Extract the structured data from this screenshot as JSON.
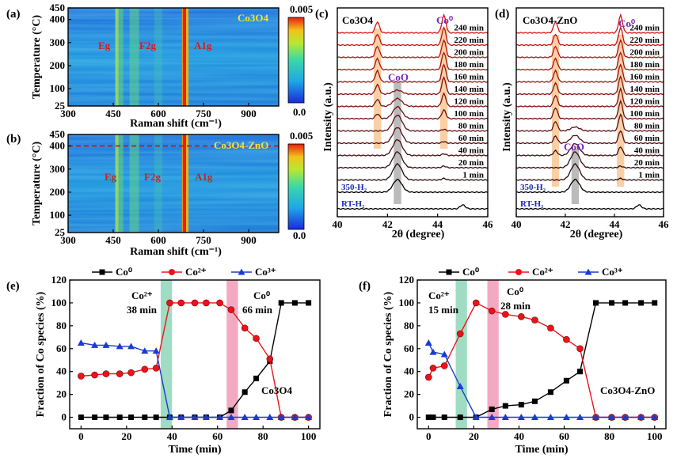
{
  "panels": {
    "a": {
      "label": "(a)",
      "material": "Co3O4",
      "xlabel": "Raman shift (cm⁻¹)",
      "ylabel": "Temperature (°C)",
      "xticks": [
        300,
        450,
        600,
        750,
        900
      ],
      "yticks": [
        25,
        100,
        200,
        300,
        400,
        450
      ],
      "xlim": [
        300,
        1000
      ],
      "ylim": [
        25,
        450
      ],
      "colorbar": {
        "max_label": "0.005",
        "min_label": "0.0"
      },
      "peaks": [
        {
          "name": "Eg",
          "shift": 470
        },
        {
          "name": "F2g",
          "shift": 520
        },
        {
          "name": "A1g",
          "shift": 690
        }
      ]
    },
    "b": {
      "label": "(b)",
      "material": "Co3O4-ZnO",
      "xlabel": "Raman shift (cm⁻¹)",
      "ylabel": "Temperature (°C)",
      "xticks": [
        300,
        450,
        600,
        750,
        900
      ],
      "yticks": [
        25,
        100,
        200,
        300,
        400,
        450
      ],
      "xlim": [
        300,
        1000
      ],
      "ylim": [
        25,
        450
      ],
      "dashed_line_temperature": 400,
      "colorbar": {
        "max_label": "0.005",
        "min_label": "0.0"
      },
      "peaks": [
        {
          "name": "Eg",
          "shift": 470
        },
        {
          "name": "F2g",
          "shift": 520
        },
        {
          "name": "A1g",
          "shift": 690
        }
      ]
    },
    "c": {
      "label": "(c)",
      "material": "Co3O4",
      "xlabel": "2θ (degree)",
      "ylabel": "Intensity (a.u.)",
      "xticks": [
        40,
        42,
        44,
        46
      ],
      "xlim": [
        40,
        46
      ],
      "phase_labels": {
        "co": "Co⁰",
        "coo": "CoO"
      },
      "curve_labels": [
        "RT-H₂",
        "350-H₂",
        "1 min",
        "20 min",
        "40 min",
        "60 min",
        "80 min",
        "100 min",
        "120 min",
        "140 min",
        "160 min",
        "180 min",
        "200 min",
        "220 min",
        "240 min"
      ]
    },
    "d": {
      "label": "(d)",
      "material": "Co3O4-ZnO",
      "xlabel": "2θ (degree)",
      "ylabel": "Intensity (a.u.)",
      "xticks": [
        40,
        42,
        44,
        46
      ],
      "xlim": [
        40,
        46
      ],
      "phase_labels": {
        "co": "Co⁰",
        "coo": "CoO"
      },
      "curve_labels": [
        "RT-H₂",
        "350-H₂",
        "1 min",
        "20 min",
        "40 min",
        "60 min",
        "80 min",
        "100 min",
        "120 min",
        "140 min",
        "160 min",
        "180 min",
        "200 min",
        "220 min",
        "240 min"
      ]
    },
    "e": {
      "label": "(e)",
      "material": "Co3O4",
      "annotation_co2": "Co²⁺",
      "annotation_co2_time": "38 min",
      "annotation_co0": "Co⁰",
      "annotation_co0_time": "66 min"
    },
    "f": {
      "label": "(f)",
      "material": "Co3O4-ZnO",
      "annotation_co2": "Co²⁺",
      "annotation_co2_time": "15 min",
      "annotation_co0": "Co⁰",
      "annotation_co0_time": "28 min"
    }
  },
  "colors": {
    "co0": "#000000",
    "co2": "#e8141a",
    "co3": "#1a3ccc",
    "green_band": "#8fd6b8",
    "pink_band": "#f29ab8",
    "orange_band": "#f8c896",
    "gray_band": "#b4b4b4",
    "dashed_line": "#b01818"
  },
  "chart_data": [
    {
      "id": "e",
      "type": "line",
      "title": "",
      "xlabel": "Time (min)",
      "ylabel": "Fraction of Co species (%)",
      "xlim": [
        -5,
        105
      ],
      "ylim": [
        -10,
        120
      ],
      "xticks": [
        0,
        20,
        40,
        60,
        80,
        100
      ],
      "yticks": [
        0,
        20,
        40,
        60,
        80,
        100,
        120
      ],
      "bands": [
        {
          "x0": 35,
          "x1": 40,
          "color": "green"
        },
        {
          "x0": 64,
          "x1": 69,
          "color": "pink"
        }
      ],
      "series": [
        {
          "name": "Co⁰",
          "marker": "square",
          "x": [
            0,
            6,
            11,
            17,
            22,
            28,
            33,
            39,
            44,
            50,
            55,
            61,
            66,
            72,
            77,
            83,
            88,
            94,
            100
          ],
          "values": [
            0,
            0,
            0,
            0,
            0,
            0,
            0,
            0,
            0,
            0,
            0,
            0,
            6,
            22,
            34,
            49,
            100,
            100,
            100
          ]
        },
        {
          "name": "Co²⁺",
          "marker": "circle",
          "x": [
            0,
            6,
            11,
            17,
            22,
            28,
            33,
            39,
            44,
            50,
            55,
            61,
            66,
            72,
            77,
            83,
            88,
            94,
            100
          ],
          "values": [
            36,
            37,
            38,
            38,
            39,
            42,
            43,
            100,
            100,
            100,
            100,
            100,
            94,
            78,
            69,
            51,
            0,
            0,
            0
          ]
        },
        {
          "name": "Co³⁺",
          "marker": "triangle",
          "x": [
            0,
            6,
            11,
            17,
            22,
            28,
            33,
            39,
            44,
            50,
            55,
            61,
            66,
            72,
            77,
            83,
            88,
            94,
            100
          ],
          "values": [
            65,
            63,
            63,
            62,
            62,
            58,
            58,
            0,
            0,
            0,
            0,
            0,
            0,
            0,
            0,
            0,
            0,
            0,
            0
          ]
        }
      ]
    },
    {
      "id": "f",
      "type": "line",
      "title": "",
      "xlabel": "Time (min)",
      "ylabel": "Fraction of Co species (%)",
      "xlim": [
        -5,
        105
      ],
      "ylim": [
        -10,
        120
      ],
      "xticks": [
        0,
        20,
        40,
        60,
        80,
        100
      ],
      "yticks": [
        0,
        20,
        40,
        60,
        80,
        100,
        120
      ],
      "bands": [
        {
          "x0": 12,
          "x1": 17,
          "color": "green"
        },
        {
          "x0": 26,
          "x1": 31,
          "color": "pink"
        }
      ],
      "series": [
        {
          "name": "Co⁰",
          "marker": "square",
          "x": [
            0,
            2,
            7,
            14,
            21,
            28,
            34,
            41,
            47,
            54,
            61,
            67,
            74,
            81,
            87,
            94,
            100
          ],
          "values": [
            0,
            0,
            0,
            0,
            0,
            7,
            10,
            11,
            14,
            22,
            32,
            40,
            100,
            100,
            100,
            100,
            100
          ]
        },
        {
          "name": "Co²⁺",
          "marker": "circle",
          "x": [
            0,
            2,
            7,
            14,
            21,
            28,
            34,
            41,
            47,
            54,
            61,
            67,
            74,
            81,
            87,
            94,
            100
          ],
          "values": [
            35,
            43,
            45,
            73,
            100,
            93,
            90,
            88,
            85,
            78,
            68,
            60,
            0,
            0,
            0,
            0,
            0
          ]
        },
        {
          "name": "Co³⁺",
          "marker": "triangle",
          "x": [
            0,
            2,
            7,
            14,
            21,
            28,
            34,
            41,
            47,
            54,
            61,
            67,
            74,
            81,
            87,
            94,
            100
          ],
          "values": [
            65,
            57,
            55,
            27,
            0,
            0,
            0,
            0,
            0,
            0,
            0,
            0,
            0,
            0,
            0,
            0,
            0
          ]
        }
      ]
    }
  ]
}
